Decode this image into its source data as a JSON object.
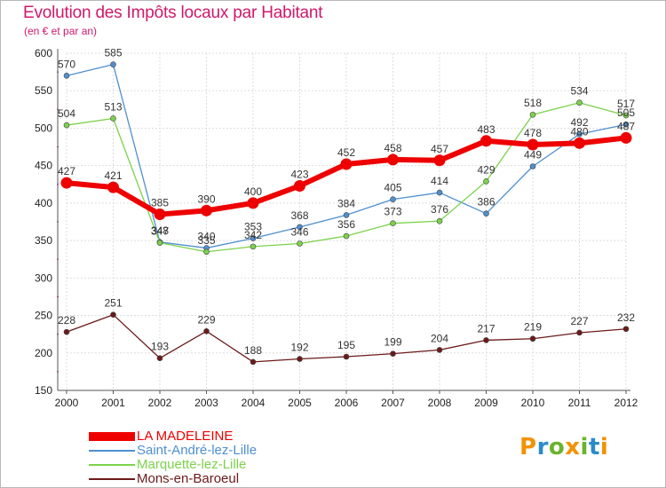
{
  "title": "Evolution des Impôts locaux par Habitant",
  "subtitle": "(en € et par an)",
  "logo": {
    "text": "Proxiti",
    "colors": [
      "#f39200",
      "#2a8bc9",
      "#6ab42d",
      "#f39200",
      "#6ab42d",
      "#2a8bc9",
      "#f39200"
    ]
  },
  "chart_data": {
    "type": "line",
    "title": "Evolution des Impôts locaux par Habitant",
    "subtitle": "(en € et par an)",
    "xlabel": "",
    "ylabel": "",
    "x": [
      "2000",
      "2001",
      "2002",
      "2003",
      "2004",
      "2005",
      "2006",
      "2007",
      "2008",
      "2009",
      "2010",
      "2011",
      "2012"
    ],
    "ylim": [
      150,
      600
    ],
    "yticks": [
      150,
      200,
      250,
      300,
      350,
      400,
      450,
      500,
      550,
      600
    ],
    "grid": true,
    "legend_position": "bottom-left",
    "series": [
      {
        "name": "LA MADELEINE",
        "color": "#ee0000",
        "values": [
          427,
          421,
          385,
          390,
          400,
          423,
          452,
          458,
          457,
          483,
          478,
          480,
          487
        ]
      },
      {
        "name": "Saint-André-lez-Lille",
        "color": "#4f8fd0",
        "values": [
          570,
          585,
          348,
          340,
          353,
          368,
          384,
          405,
          414,
          386,
          449,
          492,
          505
        ]
      },
      {
        "name": "Marquette-lez-Lille",
        "color": "#7cd24a",
        "values": [
          504,
          513,
          347,
          335,
          342,
          346,
          356,
          373,
          376,
          429,
          518,
          534,
          517
        ]
      },
      {
        "name": "Mons-en-Baroeul",
        "color": "#6b1a1a",
        "values": [
          228,
          251,
          193,
          229,
          188,
          192,
          195,
          199,
          204,
          217,
          219,
          227,
          232
        ]
      }
    ]
  }
}
